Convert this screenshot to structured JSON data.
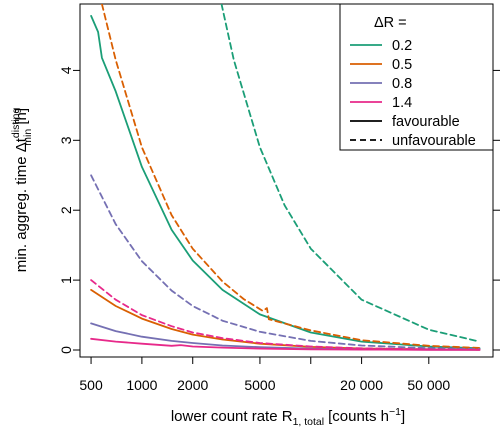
{
  "chart_data": {
    "type": "line",
    "xscale": "log",
    "xlim": [
      430,
      120000
    ],
    "ylim": [
      -0.1,
      4.95
    ],
    "grid": false,
    "legend_position": "top-right",
    "xlabel_text": "lower count rate R",
    "xlabel_sub": "1, total",
    "xlabel_unit": "[counts h",
    "xlabel_unit_sup": "−1",
    "xlabel_unit_end": "]",
    "ylabel_text": "min. aggreg. time  Δt",
    "ylabel_sup": "disting",
    "ylabel_sub": "min",
    "ylabel_unit": " [h]",
    "x_ticks": [
      {
        "value": 500,
        "label": "500"
      },
      {
        "value": 1000,
        "label": "1000"
      },
      {
        "value": 2000,
        "label": "2000"
      },
      {
        "value": 5000,
        "label": "5000"
      },
      {
        "value": 20000,
        "label": "20 000"
      },
      {
        "value": 50000,
        "label": "50 000"
      }
    ],
    "x_minor_ticks": [
      10000
    ],
    "y_ticks": [
      0,
      1,
      2,
      3,
      4
    ],
    "legend": {
      "title": "ΔR =",
      "entries": [
        {
          "label": "0.2",
          "color": "#1b9e77",
          "style": "line"
        },
        {
          "label": "0.5",
          "color": "#d95f02",
          "style": "line"
        },
        {
          "label": "0.8",
          "color": "#7570b3",
          "style": "line"
        },
        {
          "label": "1.4",
          "color": "#e7298a",
          "style": "line"
        },
        {
          "label": "favourable",
          "color": "#000000",
          "style": "solid"
        },
        {
          "label": "unfavourable",
          "color": "#000000",
          "style": "dashed"
        }
      ]
    },
    "series": [
      {
        "delta_r": "0.2",
        "type": "favourable",
        "color": "#1b9e77",
        "dash": false,
        "x": [
          500,
          550,
          580,
          700,
          1000,
          1500,
          2000,
          3000,
          5000,
          10000,
          20000,
          50000,
          100000
        ],
        "y": [
          4.78,
          4.55,
          4.18,
          3.7,
          2.62,
          1.72,
          1.28,
          0.86,
          0.51,
          0.25,
          0.12,
          0.05,
          0.025
        ]
      },
      {
        "delta_r": "0.2",
        "type": "unfavourable",
        "color": "#1b9e77",
        "dash": true,
        "x": [
          2960,
          3500,
          5000,
          7000,
          10000,
          20000,
          50000,
          100000
        ],
        "y": [
          4.95,
          4.15,
          2.9,
          2.07,
          1.45,
          0.72,
          0.29,
          0.12
        ]
      },
      {
        "delta_r": "0.5",
        "type": "favourable",
        "color": "#d95f02",
        "dash": false,
        "x": [
          500,
          700,
          1000,
          1500,
          2000,
          3000,
          5000,
          10000,
          20000,
          50000,
          100000
        ],
        "y": [
          0.86,
          0.63,
          0.45,
          0.3,
          0.22,
          0.15,
          0.09,
          0.045,
          0.022,
          0.01,
          0.005
        ]
      },
      {
        "delta_r": "0.5",
        "type": "unfavourable",
        "color": "#d95f02",
        "dash": true,
        "x": [
          580,
          700,
          1000,
          1500,
          2000,
          3000,
          4000,
          5200,
          5500,
          5650,
          6500,
          10000,
          20000,
          50000,
          100000
        ],
        "y": [
          4.95,
          4.15,
          2.9,
          1.93,
          1.45,
          0.98,
          0.73,
          0.56,
          0.6,
          0.44,
          0.4,
          0.28,
          0.14,
          0.06,
          0.03
        ]
      },
      {
        "delta_r": "0.8",
        "type": "favourable",
        "color": "#7570b3",
        "dash": false,
        "x": [
          500,
          700,
          1000,
          1500,
          2000,
          3000,
          5000,
          10000,
          20000,
          50000,
          100000
        ],
        "y": [
          0.38,
          0.27,
          0.19,
          0.13,
          0.1,
          0.065,
          0.04,
          0.02,
          0.01,
          0.004,
          0.002
        ]
      },
      {
        "delta_r": "0.8",
        "type": "unfavourable",
        "color": "#7570b3",
        "dash": true,
        "x": [
          500,
          700,
          1000,
          1500,
          2000,
          3000,
          5000,
          10000,
          20000,
          50000,
          100000
        ],
        "y": [
          2.5,
          1.8,
          1.27,
          0.85,
          0.63,
          0.42,
          0.26,
          0.13,
          0.065,
          0.026,
          0.013
        ]
      },
      {
        "delta_r": "1.4",
        "type": "favourable",
        "color": "#e7298a",
        "dash": false,
        "x": [
          500,
          700,
          1000,
          1500,
          1700,
          2000,
          3000,
          5000,
          10000,
          20000,
          50000,
          100000
        ],
        "y": [
          0.16,
          0.12,
          0.09,
          0.06,
          0.07,
          0.05,
          0.035,
          0.02,
          0.01,
          0.006,
          0.003,
          0.002
        ]
      },
      {
        "delta_r": "1.4",
        "type": "unfavourable",
        "color": "#e7298a",
        "dash": true,
        "x": [
          500,
          700,
          1000,
          1500,
          2000,
          3000,
          5000,
          10000,
          20000,
          50000,
          100000
        ],
        "y": [
          1.0,
          0.72,
          0.5,
          0.34,
          0.25,
          0.17,
          0.1,
          0.05,
          0.025,
          0.01,
          0.005
        ]
      }
    ]
  }
}
